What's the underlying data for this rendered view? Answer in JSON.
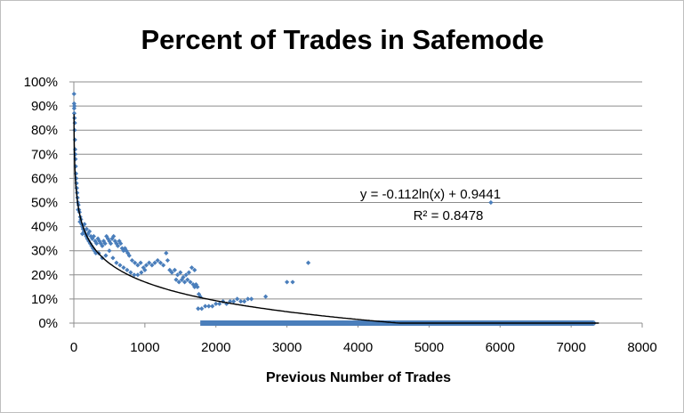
{
  "chart_data": {
    "type": "scatter",
    "title": "Percent of Trades in Safemode",
    "xlabel": "Previous Number of Trades",
    "ylabel": "",
    "xlim": [
      0,
      8000
    ],
    "ylim": [
      0,
      1
    ],
    "x_ticks": [
      "0",
      "1000",
      "2000",
      "3000",
      "4000",
      "5000",
      "6000",
      "7000",
      "8000"
    ],
    "y_ticks": [
      "0%",
      "10%",
      "20%",
      "30%",
      "40%",
      "50%",
      "60%",
      "70%",
      "80%",
      "90%",
      "100%"
    ],
    "grid": "horizontal",
    "marker_color": "#4a7ebb",
    "trendline_color": "#000000",
    "trendline": {
      "type": "logarithmic",
      "slope": -0.112,
      "intercept": 0.9441,
      "equation": "y = -0.112ln(x) + 0.9441",
      "r_squared": "R² = 0.8478"
    },
    "series": [
      {
        "points": [
          [
            3,
            0.95
          ],
          [
            4,
            0.91
          ],
          [
            5,
            0.89
          ],
          [
            6,
            0.87
          ],
          [
            8,
            0.9
          ],
          [
            10,
            0.85
          ],
          [
            12,
            0.8
          ],
          [
            14,
            0.83
          ],
          [
            16,
            0.76
          ],
          [
            18,
            0.72
          ],
          [
            20,
            0.7
          ],
          [
            23,
            0.68
          ],
          [
            26,
            0.65
          ],
          [
            30,
            0.62
          ],
          [
            34,
            0.6
          ],
          [
            38,
            0.58
          ],
          [
            42,
            0.56
          ],
          [
            47,
            0.54
          ],
          [
            52,
            0.52
          ],
          [
            58,
            0.5
          ],
          [
            65,
            0.49
          ],
          [
            72,
            0.47
          ],
          [
            80,
            0.46
          ],
          [
            90,
            0.44
          ],
          [
            100,
            0.43
          ],
          [
            110,
            0.41
          ],
          [
            120,
            0.4
          ],
          [
            130,
            0.39
          ],
          [
            145,
            0.38
          ],
          [
            160,
            0.37
          ],
          [
            175,
            0.36
          ],
          [
            190,
            0.35
          ],
          [
            210,
            0.34
          ],
          [
            230,
            0.33
          ],
          [
            250,
            0.32
          ],
          [
            270,
            0.31
          ],
          [
            290,
            0.3
          ],
          [
            310,
            0.29
          ],
          [
            60,
            0.47
          ],
          [
            85,
            0.42
          ],
          [
            120,
            0.37
          ],
          [
            150,
            0.41
          ],
          [
            180,
            0.39
          ],
          [
            200,
            0.37
          ],
          [
            220,
            0.38
          ],
          [
            240,
            0.36
          ],
          [
            260,
            0.35
          ],
          [
            280,
            0.36
          ],
          [
            300,
            0.34
          ],
          [
            320,
            0.33
          ],
          [
            340,
            0.35
          ],
          [
            360,
            0.34
          ],
          [
            380,
            0.33
          ],
          [
            400,
            0.32
          ],
          [
            420,
            0.34
          ],
          [
            440,
            0.33
          ],
          [
            460,
            0.36
          ],
          [
            480,
            0.35
          ],
          [
            500,
            0.34
          ],
          [
            520,
            0.33
          ],
          [
            540,
            0.35
          ],
          [
            560,
            0.36
          ],
          [
            580,
            0.34
          ],
          [
            600,
            0.33
          ],
          [
            620,
            0.32
          ],
          [
            640,
            0.34
          ],
          [
            660,
            0.33
          ],
          [
            680,
            0.31
          ],
          [
            700,
            0.3
          ],
          [
            720,
            0.31
          ],
          [
            740,
            0.3
          ],
          [
            760,
            0.29
          ],
          [
            780,
            0.28
          ],
          [
            350,
            0.29
          ],
          [
            400,
            0.27
          ],
          [
            450,
            0.28
          ],
          [
            500,
            0.3
          ],
          [
            550,
            0.27
          ],
          [
            600,
            0.25
          ],
          [
            650,
            0.24
          ],
          [
            700,
            0.23
          ],
          [
            750,
            0.22
          ],
          [
            800,
            0.21
          ],
          [
            850,
            0.2
          ],
          [
            900,
            0.2
          ],
          [
            950,
            0.21
          ],
          [
            1000,
            0.22
          ],
          [
            820,
            0.26
          ],
          [
            860,
            0.25
          ],
          [
            900,
            0.24
          ],
          [
            940,
            0.25
          ],
          [
            980,
            0.23
          ],
          [
            1020,
            0.24
          ],
          [
            1060,
            0.25
          ],
          [
            1100,
            0.24
          ],
          [
            1140,
            0.25
          ],
          [
            1180,
            0.26
          ],
          [
            1220,
            0.25
          ],
          [
            1260,
            0.24
          ],
          [
            1300,
            0.29
          ],
          [
            1320,
            0.26
          ],
          [
            1350,
            0.22
          ],
          [
            1380,
            0.21
          ],
          [
            1420,
            0.22
          ],
          [
            1460,
            0.2
          ],
          [
            1500,
            0.21
          ],
          [
            1540,
            0.19
          ],
          [
            1580,
            0.2
          ],
          [
            1620,
            0.21
          ],
          [
            1660,
            0.23
          ],
          [
            1700,
            0.22
          ],
          [
            1440,
            0.18
          ],
          [
            1480,
            0.17
          ],
          [
            1520,
            0.18
          ],
          [
            1560,
            0.17
          ],
          [
            1600,
            0.18
          ],
          [
            1640,
            0.17
          ],
          [
            1680,
            0.16
          ],
          [
            1700,
            0.15
          ],
          [
            1720,
            0.16
          ],
          [
            1740,
            0.15
          ],
          [
            1760,
            0.12
          ],
          [
            1780,
            0.11
          ],
          [
            1750,
            0.06
          ],
          [
            1800,
            0.06
          ],
          [
            1850,
            0.07
          ],
          [
            1900,
            0.07
          ],
          [
            1950,
            0.07
          ],
          [
            2000,
            0.08
          ],
          [
            2050,
            0.08
          ],
          [
            2100,
            0.09
          ],
          [
            2150,
            0.08
          ],
          [
            2200,
            0.09
          ],
          [
            2250,
            0.09
          ],
          [
            2300,
            0.1
          ],
          [
            2350,
            0.09
          ],
          [
            2400,
            0.09
          ],
          [
            2450,
            0.1
          ],
          [
            2500,
            0.1
          ],
          [
            2700,
            0.11
          ],
          [
            3000,
            0.17
          ],
          [
            3080,
            0.17
          ],
          [
            3300,
            0.25
          ],
          [
            5870,
            0.5
          ]
        ],
        "zero_band": {
          "x_from": 1780,
          "x_to": 7320,
          "y": 0
        }
      }
    ]
  }
}
